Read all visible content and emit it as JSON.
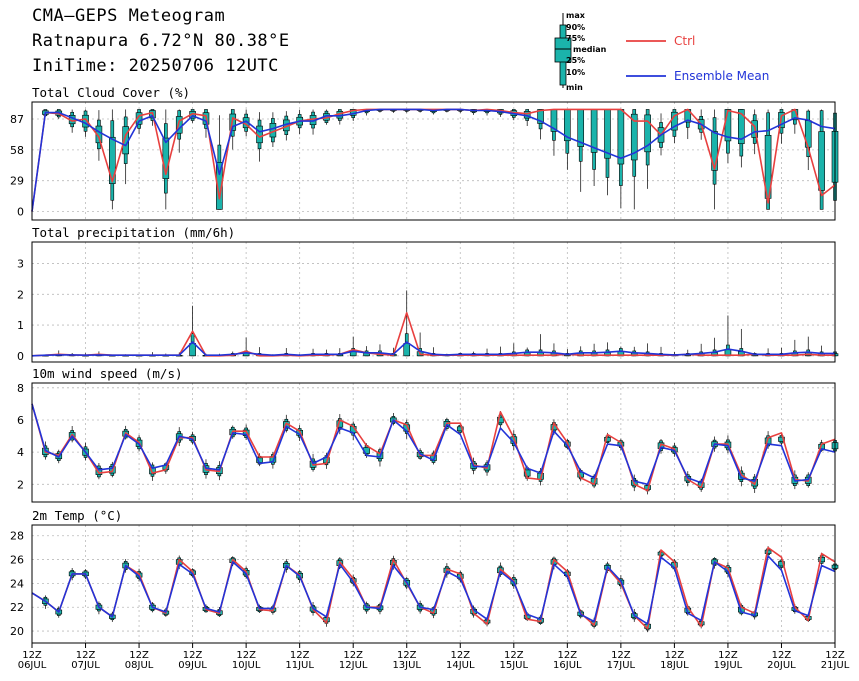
{
  "header": {
    "title": "CMA–GEPS Meteogram",
    "location": "Ratnapura 6.72°N 80.38°E",
    "init": "IniTime: 20250706 12UTC"
  },
  "legend": {
    "box_labels": [
      "max",
      "90%",
      "75%",
      "median",
      "25%",
      "10%",
      "min"
    ],
    "ctrl_label": "Ctrl",
    "mean_label": "Ensemble Mean",
    "ctrl_color": "#e8403f",
    "mean_color": "#2234d8",
    "box_color": "#1bb3ab"
  },
  "x_axis": {
    "labels": [
      [
        "12Z",
        "06JUL"
      ],
      [
        "12Z",
        "07JUL"
      ],
      [
        "12Z",
        "08JUL"
      ],
      [
        "12Z",
        "09JUL"
      ],
      [
        "12Z",
        "10JUL"
      ],
      [
        "12Z",
        "11JUL"
      ],
      [
        "12Z",
        "12JUL"
      ],
      [
        "12Z",
        "13JUL"
      ],
      [
        "12Z",
        "14JUL"
      ],
      [
        "12Z",
        "15JUL"
      ],
      [
        "12Z",
        "16JUL"
      ],
      [
        "12Z",
        "17JUL"
      ],
      [
        "12Z",
        "18JUL"
      ],
      [
        "12Z",
        "19JUL"
      ],
      [
        "12Z",
        "20JUL"
      ],
      [
        "12Z",
        "21JUL"
      ]
    ],
    "steps_per_day": 4,
    "n_steps": 61
  },
  "chart_data": [
    {
      "type": "line",
      "title": "Total Cloud Cover (%)",
      "yticks": [
        0,
        29,
        58,
        87
      ],
      "ylim": [
        -8,
        103
      ],
      "grid": true,
      "series": [
        {
          "name": "Ctrl",
          "values": [
            0,
            93,
            92,
            85,
            87,
            70,
            28,
            72,
            90,
            93,
            35,
            85,
            92,
            90,
            12,
            88,
            82,
            70,
            75,
            80,
            85,
            87,
            88,
            92,
            95,
            96,
            96,
            96,
            96,
            96,
            96,
            96,
            96,
            95,
            96,
            95,
            93,
            92,
            95,
            96,
            96,
            96,
            96,
            96,
            96,
            85,
            85,
            72,
            90,
            96,
            82,
            40,
            95,
            92,
            80,
            8,
            90,
            96,
            60,
            15,
            25
          ]
        },
        {
          "name": "Ensemble Mean",
          "values": [
            0,
            93,
            93,
            88,
            83,
            75,
            68,
            62,
            85,
            90,
            65,
            78,
            90,
            85,
            35,
            80,
            85,
            75,
            78,
            82,
            85,
            85,
            90,
            90,
            92,
            95,
            96,
            96,
            96,
            96,
            95,
            96,
            96,
            95,
            95,
            94,
            92,
            90,
            85,
            78,
            70,
            65,
            60,
            55,
            50,
            55,
            62,
            72,
            80,
            86,
            82,
            74,
            70,
            68,
            75,
            76,
            82,
            88,
            86,
            80,
            78
          ]
        }
      ]
    },
    {
      "type": "line",
      "title": "Total precipitation (mm/6h)",
      "yticks": [
        0,
        1,
        2,
        3
      ],
      "ylim": [
        -0.2,
        3.7
      ],
      "grid": true,
      "series": [
        {
          "name": "Ctrl",
          "values": [
            0,
            0.02,
            0.05,
            0.03,
            0.02,
            0.05,
            0.02,
            0.02,
            0.02,
            0.02,
            0.02,
            0.02,
            0.8,
            0,
            0,
            0.02,
            0.15,
            0,
            0,
            0.02,
            0,
            0.02,
            0.02,
            0.05,
            0.2,
            0.1,
            0.05,
            0.02,
            1.4,
            0.05,
            0.02,
            0.02,
            0.02,
            0.02,
            0.02,
            0.02,
            0.02,
            0.02,
            0.02,
            0.02,
            0.05,
            0.02,
            0.02,
            0.02,
            0.02,
            0.02,
            0.02,
            0.02,
            0.02,
            0.05,
            0.02,
            0.02,
            0.02,
            0.02,
            0.05,
            0.02,
            0.02,
            0.02,
            0.05,
            0.02,
            0.02
          ]
        },
        {
          "name": "Ensemble Mean",
          "values": [
            0,
            0.02,
            0.03,
            0.03,
            0.02,
            0.03,
            0.02,
            0.02,
            0.02,
            0.02,
            0.02,
            0.02,
            0.45,
            0.02,
            0.02,
            0.05,
            0.1,
            0.05,
            0.02,
            0.05,
            0.02,
            0.05,
            0.05,
            0.05,
            0.15,
            0.1,
            0.1,
            0.05,
            0.45,
            0.15,
            0.05,
            0.03,
            0.05,
            0.05,
            0.05,
            0.05,
            0.08,
            0.12,
            0.12,
            0.1,
            0.05,
            0.1,
            0.1,
            0.12,
            0.15,
            0.1,
            0.08,
            0.05,
            0.03,
            0.05,
            0.08,
            0.12,
            0.22,
            0.15,
            0.05,
            0.05,
            0.05,
            0.1,
            0.12,
            0.08,
            0.08
          ]
        }
      ]
    },
    {
      "type": "line",
      "title": "10m wind speed (m/s)",
      "yticks": [
        2,
        4,
        6,
        8
      ],
      "ylim": [
        0.9,
        8.3
      ],
      "grid": true,
      "series": [
        {
          "name": "Ctrl",
          "values": [
            7.0,
            4.0,
            3.8,
            5.1,
            4.0,
            2.7,
            2.8,
            5.2,
            4.6,
            2.7,
            2.9,
            4.9,
            4.9,
            2.9,
            2.8,
            5.3,
            5.3,
            3.7,
            3.7,
            5.8,
            5.3,
            3.2,
            3.3,
            6.0,
            5.6,
            4.4,
            3.9,
            6.0,
            5.7,
            3.8,
            3.8,
            5.8,
            5.8,
            3.2,
            3.0,
            6.5,
            4.9,
            2.4,
            2.3,
            5.8,
            4.6,
            2.4,
            2.0,
            5.1,
            4.6,
            2.0,
            1.6,
            4.5,
            4.2,
            2.3,
            1.8,
            4.5,
            4.5,
            2.6,
            2.0,
            4.9,
            5.2,
            2.3,
            2.2,
            4.5,
            4.8
          ]
        },
        {
          "name": "Ensemble Mean",
          "values": [
            7.0,
            4.1,
            3.7,
            5.0,
            4.0,
            2.9,
            3.0,
            5.1,
            4.5,
            3.0,
            3.2,
            5.0,
            4.8,
            3.0,
            2.9,
            5.2,
            5.1,
            3.3,
            3.4,
            5.6,
            5.1,
            3.3,
            3.7,
            5.5,
            5.2,
            3.8,
            3.7,
            6.0,
            5.3,
            3.9,
            3.5,
            5.7,
            5.1,
            3.1,
            3.1,
            5.5,
            4.6,
            3.0,
            2.7,
            5.3,
            4.4,
            2.8,
            2.4,
            4.5,
            4.4,
            2.2,
            2.0,
            4.3,
            4.1,
            2.4,
            2.1,
            4.5,
            4.4,
            2.4,
            2.2,
            4.5,
            4.4,
            2.2,
            2.3,
            4.2,
            4.0
          ]
        }
      ]
    },
    {
      "type": "line",
      "title": "2m Temp (°C)",
      "yticks": [
        20,
        22,
        24,
        26,
        28
      ],
      "ylim": [
        19,
        28.9
      ],
      "grid": true,
      "series": [
        {
          "name": "Ctrl",
          "values": [
            23.2,
            22.5,
            21.6,
            24.8,
            24.8,
            22.0,
            21.2,
            25.5,
            24.8,
            22.0,
            21.5,
            26.0,
            25.0,
            21.8,
            21.5,
            26.0,
            25.0,
            21.8,
            21.7,
            25.5,
            24.7,
            21.8,
            20.7,
            25.8,
            24.4,
            22.0,
            22.0,
            26.0,
            24.0,
            22.0,
            21.5,
            25.2,
            24.8,
            21.5,
            20.6,
            25.2,
            24.2,
            21.0,
            20.8,
            26.0,
            25.0,
            21.5,
            20.5,
            25.3,
            24.0,
            21.3,
            20.2,
            26.8,
            25.8,
            22.0,
            20.4,
            25.8,
            25.3,
            22.0,
            21.5,
            27.0,
            26.2,
            22.0,
            20.9,
            26.5,
            25.8
          ]
        },
        {
          "name": "Ensemble Mean",
          "values": [
            23.2,
            22.5,
            21.6,
            24.8,
            24.8,
            22.0,
            21.2,
            25.5,
            24.6,
            22.0,
            21.6,
            25.6,
            24.8,
            21.9,
            21.6,
            25.8,
            24.8,
            21.9,
            21.9,
            25.5,
            24.6,
            21.9,
            21.2,
            25.6,
            24.1,
            22.0,
            21.9,
            25.5,
            24.1,
            22.0,
            21.8,
            25.0,
            24.4,
            21.8,
            21.0,
            25.0,
            24.1,
            21.4,
            21.0,
            25.6,
            24.6,
            21.4,
            20.8,
            25.4,
            24.2,
            21.3,
            20.6,
            26.2,
            25.3,
            21.5,
            20.9,
            25.8,
            25.0,
            21.6,
            21.3,
            26.3,
            25.1,
            21.7,
            21.3,
            25.5,
            25.0
          ]
        }
      ]
    }
  ]
}
